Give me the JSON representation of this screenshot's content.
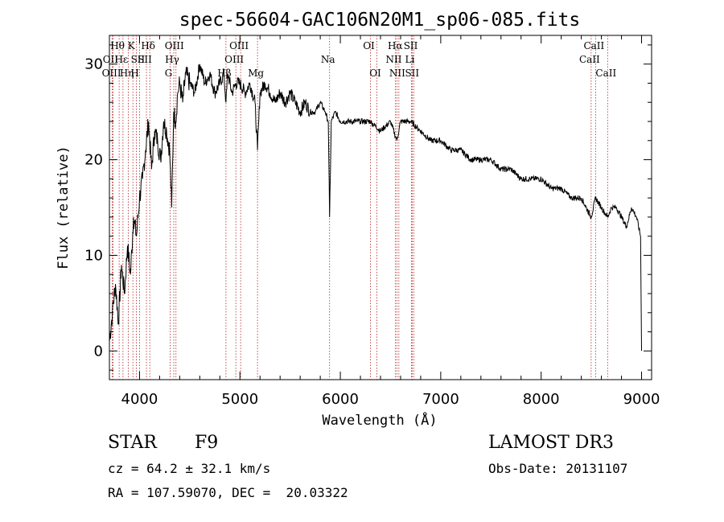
{
  "chart_data": {
    "type": "line",
    "title": "spec-56604-GAC106N20M1_sp06-085.fits",
    "xlabel": "Wavelength (Å)",
    "ylabel": "Flux (relative)",
    "xlim": [
      3700,
      9100
    ],
    "ylim": [
      -3,
      33
    ],
    "xticks": [
      4000,
      5000,
      6000,
      7000,
      8000,
      9000
    ],
    "yticks": [
      0,
      10,
      20,
      30
    ],
    "grid": false,
    "series": [
      {
        "name": "flux",
        "x": [
          3700,
          3730,
          3760,
          3790,
          3820,
          3850,
          3880,
          3910,
          3940,
          3970,
          4000,
          4030,
          4060,
          4090,
          4120,
          4150,
          4180,
          4210,
          4240,
          4270,
          4300,
          4320,
          4340,
          4360,
          4380,
          4400,
          4430,
          4460,
          4500,
          4550,
          4600,
          4650,
          4700,
          4750,
          4800,
          4840,
          4861,
          4880,
          4920,
          4960,
          5000,
          5050,
          5100,
          5150,
          5175,
          5200,
          5250,
          5300,
          5350,
          5400,
          5450,
          5500,
          5550,
          5600,
          5650,
          5700,
          5750,
          5800,
          5850,
          5880,
          5893,
          5910,
          5950,
          6000,
          6100,
          6200,
          6300,
          6400,
          6500,
          6563,
          6600,
          6700,
          6800,
          6900,
          7000,
          7100,
          7200,
          7300,
          7400,
          7500,
          7600,
          7700,
          7800,
          7900,
          8000,
          8100,
          8200,
          8300,
          8400,
          8498,
          8542,
          8600,
          8662,
          8700,
          8750,
          8800,
          8850,
          8900,
          8950,
          8990,
          9000
        ],
        "y": [
          1,
          4,
          7,
          3,
          9,
          6,
          11,
          8,
          14,
          12,
          16,
          18,
          21,
          24,
          19,
          23,
          22,
          20,
          24,
          23,
          21,
          15,
          25,
          24,
          27,
          28,
          26,
          29,
          28,
          27,
          30,
          28,
          29,
          27,
          28,
          29,
          26,
          29,
          27,
          28,
          28,
          27,
          28,
          26,
          21,
          27,
          28,
          27,
          26,
          27,
          26,
          27,
          26,
          25,
          26,
          25,
          25,
          26,
          25,
          24,
          14,
          24,
          25,
          24,
          24,
          24,
          24,
          23,
          24,
          22,
          24,
          24,
          23,
          22,
          22,
          21,
          21,
          20,
          20,
          20,
          19,
          19,
          18,
          18,
          18,
          17,
          17,
          16,
          16,
          14,
          16,
          15,
          14,
          15,
          15,
          14,
          13,
          15,
          14,
          12,
          0
        ]
      }
    ],
    "lines": [
      {
        "label": "Hθ",
        "x": 3797,
        "row": 1
      },
      {
        "label": "OII",
        "x": 3727,
        "row": 2
      },
      {
        "label": "OIII",
        "x": 3737,
        "row": 3
      },
      {
        "label": "Hε",
        "x": 3835,
        "row": 2
      },
      {
        "label": "Hη",
        "x": 3889,
        "row": 3
      },
      {
        "label": "K",
        "x": 3934,
        "row": 1
      },
      {
        "label": "SII",
        "x": 4000,
        "row": 2
      },
      {
        "label": "H",
        "x": 3969,
        "row": 3
      },
      {
        "label": "Hδ",
        "x": 4102,
        "row": 1
      },
      {
        "label": "SII",
        "x": 4069,
        "row": 2
      },
      {
        "label": "OIII",
        "x": 4363,
        "row": 1
      },
      {
        "label": "Hγ",
        "x": 4341,
        "row": 2
      },
      {
        "label": "G",
        "x": 4305,
        "row": 3
      },
      {
        "label": "OIII",
        "x": 5007,
        "row": 1
      },
      {
        "label": "OIII",
        "x": 4959,
        "row": 2
      },
      {
        "label": "Hβ",
        "x": 4861,
        "row": 3
      },
      {
        "label": "Mg",
        "x": 5175,
        "row": 3
      },
      {
        "label": "Na",
        "x": 5893,
        "row": 2
      },
      {
        "label": "OI",
        "x": 6300,
        "row": 1
      },
      {
        "label": "OI",
        "x": 6364,
        "row": 3
      },
      {
        "label": "Hα",
        "x": 6563,
        "row": 1
      },
      {
        "label": "NII",
        "x": 6548,
        "row": 2
      },
      {
        "label": "NII",
        "x": 6583,
        "row": 3
      },
      {
        "label": "SII",
        "x": 6717,
        "row": 1
      },
      {
        "label": "Li",
        "x": 6708,
        "row": 2
      },
      {
        "label": "SII",
        "x": 6731,
        "row": 3
      },
      {
        "label": "CaII",
        "x": 8542,
        "row": 1
      },
      {
        "label": "CaII",
        "x": 8498,
        "row": 2
      },
      {
        "label": "CaII",
        "x": 8662,
        "row": 3
      }
    ]
  },
  "info": {
    "class_label": "STAR",
    "subclass": "F9",
    "survey": "LAMOST DR3",
    "cz": "cz = 64.2 ± 32.1 km/s",
    "obs_date": "Obs-Date: 20131107",
    "coords": "RA = 107.59070, DEC =  20.03322"
  }
}
